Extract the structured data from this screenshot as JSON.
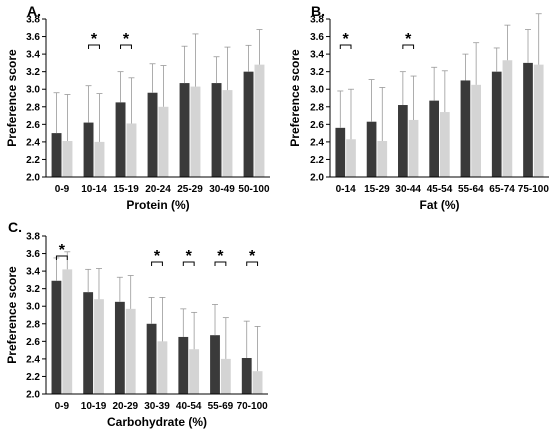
{
  "chart_data": [
    {
      "type": "bar",
      "panel_label": "A.",
      "xlabel": "Protein  (%)",
      "ylabel": "Preference score",
      "ylim": [
        2.0,
        3.8
      ],
      "yticks": [
        "2.0",
        "2.2",
        "2.4",
        "2.6",
        "2.8",
        "3.0",
        "3.2",
        "3.4",
        "3.6",
        "3.8"
      ],
      "grid": false,
      "categories": [
        "0-9",
        "10-14",
        "15-19",
        "20-24",
        "25-29",
        "30-49",
        "50-100"
      ],
      "series": [
        {
          "color": "#3a3a3a",
          "values": [
            2.5,
            2.62,
            2.85,
            2.96,
            3.07,
            3.07,
            3.2
          ],
          "error": [
            0.46,
            0.42,
            0.35,
            0.33,
            0.42,
            0.3,
            0.3
          ]
        },
        {
          "color": "#d4d4d4",
          "values": [
            2.41,
            2.4,
            2.61,
            2.8,
            3.03,
            2.99,
            3.28
          ],
          "error": [
            0.53,
            0.55,
            0.52,
            0.47,
            0.6,
            0.49,
            0.4
          ]
        }
      ],
      "significant_categories": [
        1,
        2
      ],
      "significance_marker": "*"
    },
    {
      "type": "bar",
      "panel_label": "B.",
      "xlabel": "Fat  (%)",
      "ylabel": "Preference score",
      "ylim": [
        2.0,
        3.8
      ],
      "yticks": [
        "2.0",
        "2.2",
        "2.4",
        "2.6",
        "2.8",
        "3.0",
        "3.2",
        "3.4",
        "3.6",
        "3.8"
      ],
      "grid": false,
      "categories": [
        "0-14",
        "15-29",
        "30-44",
        "45-54",
        "55-64",
        "65-74",
        "75-100"
      ],
      "series": [
        {
          "color": "#3a3a3a",
          "values": [
            2.56,
            2.63,
            2.82,
            2.87,
            3.1,
            3.2,
            3.3
          ],
          "error": [
            0.42,
            0.48,
            0.38,
            0.38,
            0.3,
            0.27,
            0.38
          ]
        },
        {
          "color": "#d4d4d4",
          "values": [
            2.43,
            2.41,
            2.65,
            2.74,
            3.05,
            3.33,
            3.28
          ],
          "error": [
            0.57,
            0.61,
            0.5,
            0.47,
            0.48,
            0.4,
            0.58
          ]
        }
      ],
      "significant_categories": [
        0,
        2
      ],
      "significance_marker": "*"
    },
    {
      "type": "bar",
      "panel_label": "C.",
      "xlabel": "Carbohydrate  (%)",
      "ylabel": "Preference score",
      "ylim": [
        2.0,
        3.8
      ],
      "yticks": [
        "2.0",
        "2.2",
        "2.4",
        "2.6",
        "2.8",
        "3.0",
        "3.2",
        "3.4",
        "3.6",
        "3.8"
      ],
      "grid": false,
      "categories": [
        "0-9",
        "10-19",
        "20-29",
        "30-39",
        "40-54",
        "55-69",
        "70-100"
      ],
      "series": [
        {
          "color": "#3a3a3a",
          "values": [
            3.29,
            3.16,
            3.05,
            2.8,
            2.65,
            2.67,
            2.41
          ],
          "error": [
            0.26,
            0.26,
            0.28,
            0.3,
            0.32,
            0.35,
            0.42
          ]
        },
        {
          "color": "#d4d4d4",
          "values": [
            3.42,
            3.08,
            2.97,
            2.6,
            2.51,
            2.4,
            2.26
          ],
          "error": [
            0.2,
            0.35,
            0.38,
            0.5,
            0.42,
            0.47,
            0.51
          ]
        }
      ],
      "significant_categories": [
        0,
        3,
        4,
        5,
        6
      ],
      "significance_marker": "*"
    }
  ]
}
